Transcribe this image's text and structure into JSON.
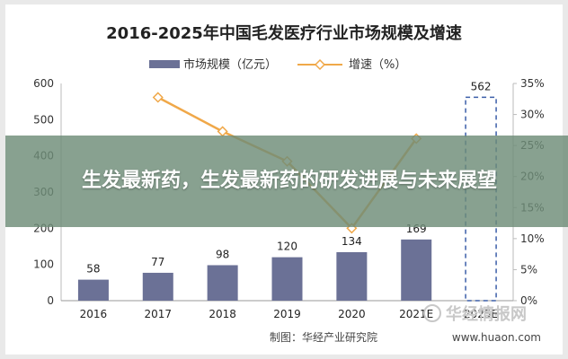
{
  "banner": {
    "text": "生发最新药，生发最新药的研发进展与未来展望"
  },
  "watermark": {
    "text": "华经情报网",
    "url": "www.huaon.com"
  },
  "chart_data": {
    "type": "bar",
    "title": "2016-2025年中国毛发医疗行业市场规模及增速",
    "categories": [
      "2016",
      "2017",
      "2018",
      "2019",
      "2020",
      "2021E",
      "2025E"
    ],
    "series": [
      {
        "name": "市场规模（亿元）",
        "type": "bar",
        "axis": "left",
        "values": [
          58,
          77,
          98,
          120,
          134,
          169,
          562
        ],
        "color": "#6b7196",
        "forecast_style_index": 6
      },
      {
        "name": "增速（%）",
        "type": "line",
        "axis": "right",
        "values": [
          null,
          32.76,
          27.27,
          22.45,
          11.67,
          26.12,
          null
        ],
        "color": "#f0a849"
      }
    ],
    "y_left": {
      "min": 0,
      "max": 600,
      "ticks": [
        0,
        100,
        200,
        300,
        400,
        500,
        600
      ]
    },
    "y_right": {
      "min": 0,
      "max": 35,
      "ticks": [
        "0%",
        "5%",
        "10%",
        "15%",
        "20%",
        "25%",
        "30%",
        "35%"
      ]
    },
    "legend_position": "top-center",
    "grid": false,
    "source": "制图：华经产业研究院"
  }
}
